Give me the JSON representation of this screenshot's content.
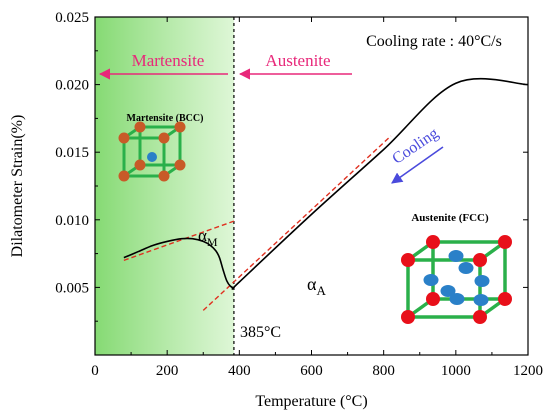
{
  "chart_data": {
    "type": "line",
    "xlabel": "Temperature (°C)",
    "ylabel": "Dilatometer Strain(%)",
    "xlim": [
      0,
      1200
    ],
    "ylim": [
      0,
      0.025
    ],
    "x_ticks": [
      0,
      200,
      400,
      600,
      800,
      1000,
      1200
    ],
    "y_ticks": [
      0,
      0.005,
      0.01,
      0.015,
      0.02,
      0.025
    ],
    "x_tick_labels": [
      "0",
      "200",
      "400",
      "600",
      "800",
      "1000",
      "1200"
    ],
    "y_tick_labels": [
      "0",
      "0.005",
      "0.010",
      "0.015",
      "0.020",
      "0.025"
    ],
    "grid": false,
    "shaded_region": {
      "x_range": [
        0,
        385
      ],
      "color": "#8ede7e"
    },
    "transition_line_x": 385,
    "series": [
      {
        "type": "measured",
        "color": "#000000",
        "points": [
          [
            80,
            0.0072
          ],
          [
            120,
            0.00765
          ],
          [
            160,
            0.0081
          ],
          [
            200,
            0.0084
          ],
          [
            240,
            0.0086
          ],
          [
            270,
            0.0086
          ],
          [
            300,
            0.0084
          ],
          [
            320,
            0.0081
          ],
          [
            335,
            0.0077
          ],
          [
            345,
            0.0072
          ],
          [
            355,
            0.0063
          ],
          [
            365,
            0.0055
          ],
          [
            375,
            0.0051
          ],
          [
            385,
            0.005
          ],
          [
            400,
            0.0054
          ],
          [
            600,
            0.0104
          ],
          [
            800,
            0.0152
          ],
          [
            1000,
            0.0201
          ],
          [
            1200,
            0.02
          ]
        ]
      }
    ],
    "fit_lines": [
      {
        "name": "martensite-fit",
        "color": "#e03020",
        "x": [
          80,
          385
        ],
        "y": [
          0.007,
          0.0099
        ]
      },
      {
        "name": "austenite-fit",
        "color": "#e03020",
        "x": [
          300,
          820
        ],
        "y": [
          0.0033,
          0.0162
        ]
      }
    ],
    "annotations": {
      "cooling_rate": "Cooling rate : 40°C/s",
      "martensite_label": "Martensite",
      "austenite_label": "Austenite",
      "cooling": "Cooling",
      "transition_temp": "385°C",
      "alpha_m": "α",
      "alpha_m_sub": "M",
      "alpha_a": "α",
      "alpha_a_sub": "A",
      "martensite_crystal": "Martensite (BCC)",
      "austenite_crystal": "Austenite (FCC)"
    },
    "colors": {
      "phase_arrow": "#e8287a",
      "cooling_arrow": "#4a4adc",
      "fit": "#e03020",
      "lattice_edge": "#2ab04a",
      "corner_atom_bcc": "#c85a28",
      "center_atom": "#2a80c8",
      "corner_atom_fcc": "#e8101a"
    }
  }
}
